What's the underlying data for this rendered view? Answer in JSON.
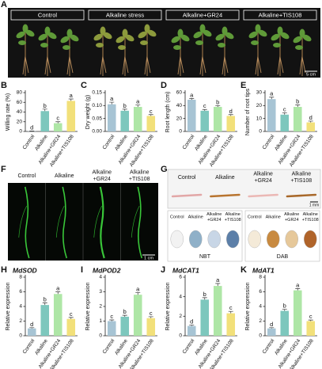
{
  "photo_panels": [
    {
      "letter": "A",
      "labels": [
        "Control",
        "Alkaline stress",
        "Alkaline+GR24",
        "Alkaline+TIS108"
      ],
      "scale": "5 cm"
    },
    {
      "letter": "F",
      "labels": [
        [
          "Control"
        ],
        [
          "Alkaline"
        ],
        [
          "Alkaline",
          "+GR24"
        ],
        [
          "Alkaline",
          "+TIS108"
        ]
      ],
      "scale": "1 cm"
    },
    {
      "letter": "G",
      "labels": [
        [
          "Control"
        ],
        [
          "Alkaline"
        ],
        [
          "Alkaline",
          "+GR24"
        ],
        [
          "Alkaline",
          "+TIS108"
        ]
      ],
      "scale": "1 mm",
      "stains": [
        {
          "name": "NBT",
          "labels": [
            [
              "Control"
            ],
            [
              "Alkaline"
            ],
            [
              "Alkaline",
              "+GR24"
            ],
            [
              "Alkaline",
              "+TIS108"
            ]
          ]
        },
        {
          "name": "DAB",
          "labels": [
            [
              "Control"
            ],
            [
              "Alkaline"
            ],
            [
              "Alkaline",
              "+GR24"
            ],
            [
              "Alkaline",
              "+TIS108"
            ]
          ]
        }
      ]
    }
  ],
  "chart_data": [
    {
      "type": "bar",
      "letter": "B",
      "ylabel": "Willing rate (%)",
      "categories": [
        "Control",
        "Alkaline",
        "Alkaline+GR24",
        "Alkaline+TIS108"
      ],
      "values": [
        0.5,
        42,
        17,
        63
      ],
      "errors": [
        0.5,
        4,
        3,
        4
      ],
      "letters": [
        "d",
        "b",
        "c",
        "a"
      ],
      "colors": [
        "#a7c4d4",
        "#7dc7bd",
        "#aee6a6",
        "#f2e07a"
      ],
      "ylim": [
        0,
        80
      ],
      "yticks": [
        0,
        20,
        40,
        60,
        80
      ]
    },
    {
      "type": "bar",
      "letter": "C",
      "ylabel": "Dry weight (g)",
      "categories": [
        "Control",
        "Alkaline",
        "Alkaline+GR24",
        "Alkaline+TIS108"
      ],
      "values": [
        0.105,
        0.08,
        0.095,
        0.06
      ],
      "errors": [
        0.008,
        0.006,
        0.007,
        0.005
      ],
      "letters": [
        "a",
        "b",
        "a",
        "c"
      ],
      "colors": [
        "#a7c4d4",
        "#7dc7bd",
        "#aee6a6",
        "#f2e07a"
      ],
      "ylim": [
        0,
        0.15
      ],
      "yticks": [
        {
          "value": 0,
          "label": "0.00"
        },
        0.05,
        {
          "value": 0.1,
          "label": "0.10"
        },
        0.15
      ]
    },
    {
      "type": "bar",
      "letter": "D",
      "ylabel": "Root length (cm)",
      "categories": [
        "Control",
        "Alkaline",
        "Alkaline+GR24",
        "Alkaline+TIS108"
      ],
      "values": [
        49,
        32,
        38,
        24
      ],
      "errors": [
        2,
        2,
        2,
        2
      ],
      "letters": [
        "a",
        "c",
        "b",
        "d"
      ],
      "colors": [
        "#a7c4d4",
        "#7dc7bd",
        "#aee6a6",
        "#f2e07a"
      ],
      "ylim": [
        0,
        60
      ],
      "yticks": [
        0,
        20,
        40,
        60
      ]
    },
    {
      "type": "bar",
      "letter": "E",
      "ylabel": "Number of root tips",
      "categories": [
        "Control",
        "Alkaline",
        "Alkaline+GR24",
        "Alkaline+TIS108"
      ],
      "values": [
        25,
        13,
        19,
        7
      ],
      "errors": [
        1.5,
        1.5,
        1.5,
        1
      ],
      "letters": [
        "a",
        "c",
        "b",
        "d"
      ],
      "colors": [
        "#a7c4d4",
        "#7dc7bd",
        "#aee6a6",
        "#f2e07a"
      ],
      "ylim": [
        0,
        30
      ],
      "yticks": [
        0,
        10,
        20,
        30
      ]
    },
    {
      "type": "bar",
      "letter": "H",
      "title": "MdSOD",
      "ylabel": "Relative expression",
      "categories": [
        "Control",
        "Alkaline",
        "Alkaline+GR24",
        "Alkaline+TIS108"
      ],
      "values": [
        1,
        4.2,
        5.7,
        2.3
      ],
      "errors": [
        0.1,
        0.3,
        0.3,
        0.2
      ],
      "letters": [
        "d",
        "b",
        "a",
        "c"
      ],
      "colors": [
        "#a7c4d4",
        "#7dc7bd",
        "#aee6a6",
        "#f2e07a"
      ],
      "ylim": [
        0,
        8
      ],
      "yticks": [
        0,
        2,
        4,
        6,
        8
      ]
    },
    {
      "type": "bar",
      "letter": "I",
      "title": "MdPOD2",
      "ylabel": "Relative expression",
      "categories": [
        "Control",
        "Alkaline",
        "Alkaline+GR24",
        "Alkaline+TIS108"
      ],
      "values": [
        1,
        1.3,
        2.8,
        1.2
      ],
      "errors": [
        0.08,
        0.1,
        0.15,
        0.1
      ],
      "letters": [
        "c",
        "b",
        "a",
        "c"
      ],
      "colors": [
        "#a7c4d4",
        "#7dc7bd",
        "#aee6a6",
        "#f2e07a"
      ],
      "ylim": [
        0,
        4
      ],
      "yticks": [
        0,
        1,
        2,
        3,
        4
      ]
    },
    {
      "type": "bar",
      "letter": "J",
      "title": "MdCAT1",
      "ylabel": "Relative expression",
      "categories": [
        "Control",
        "Alkaline",
        "Alkaline+GR24",
        "Alkaline+TIS108"
      ],
      "values": [
        1,
        3.7,
        5.1,
        2.3
      ],
      "errors": [
        0.1,
        0.2,
        0.25,
        0.2
      ],
      "letters": [
        "d",
        "b",
        "a",
        "c"
      ],
      "colors": [
        "#a7c4d4",
        "#7dc7bd",
        "#aee6a6",
        "#f2e07a"
      ],
      "ylim": [
        0,
        6
      ],
      "yticks": [
        0,
        2,
        4,
        6
      ]
    },
    {
      "type": "bar",
      "letter": "K",
      "title": "MdAT1",
      "ylabel": "Relative expression",
      "categories": [
        "Control",
        "Alkaline",
        "Alkaline+GR24",
        "Alkaline+TIS108"
      ],
      "values": [
        1,
        3.4,
        6.2,
        2.0
      ],
      "errors": [
        0.1,
        0.2,
        0.25,
        0.15
      ],
      "letters": [
        "d",
        "b",
        "a",
        "c"
      ],
      "colors": [
        "#a7c4d4",
        "#7dc7bd",
        "#aee6a6",
        "#f2e07a"
      ],
      "ylim": [
        0,
        8
      ],
      "yticks": [
        0,
        2,
        4,
        6,
        8
      ]
    }
  ]
}
